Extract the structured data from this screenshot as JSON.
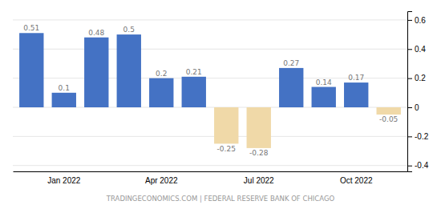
{
  "chart_data": {
    "type": "bar",
    "categories": [
      null,
      "Jan 2022",
      null,
      null,
      "Apr 2022",
      null,
      null,
      "Jul 2022",
      null,
      null,
      "Oct 2022",
      null
    ],
    "values": [
      0.51,
      0.1,
      0.48,
      0.5,
      0.2,
      0.21,
      -0.25,
      -0.28,
      0.27,
      0.14,
      0.17,
      -0.05
    ],
    "colors": [
      "#4472c4",
      "#4472c4",
      "#4472c4",
      "#4472c4",
      "#4472c4",
      "#4472c4",
      "#f0d9a8",
      "#f0d9a8",
      "#4472c4",
      "#4472c4",
      "#4472c4",
      "#f0d9a8"
    ],
    "ylim": [
      -0.44,
      0.66
    ],
    "yticks": [
      -0.4,
      -0.2,
      0.0,
      0.2,
      0.4,
      0.6
    ],
    "grid": true,
    "data_labels": true,
    "annotations": [
      "TRADINGECONOMICS.COM | FEDERAL RESERVE BANK OF CHICAGO"
    ]
  }
}
